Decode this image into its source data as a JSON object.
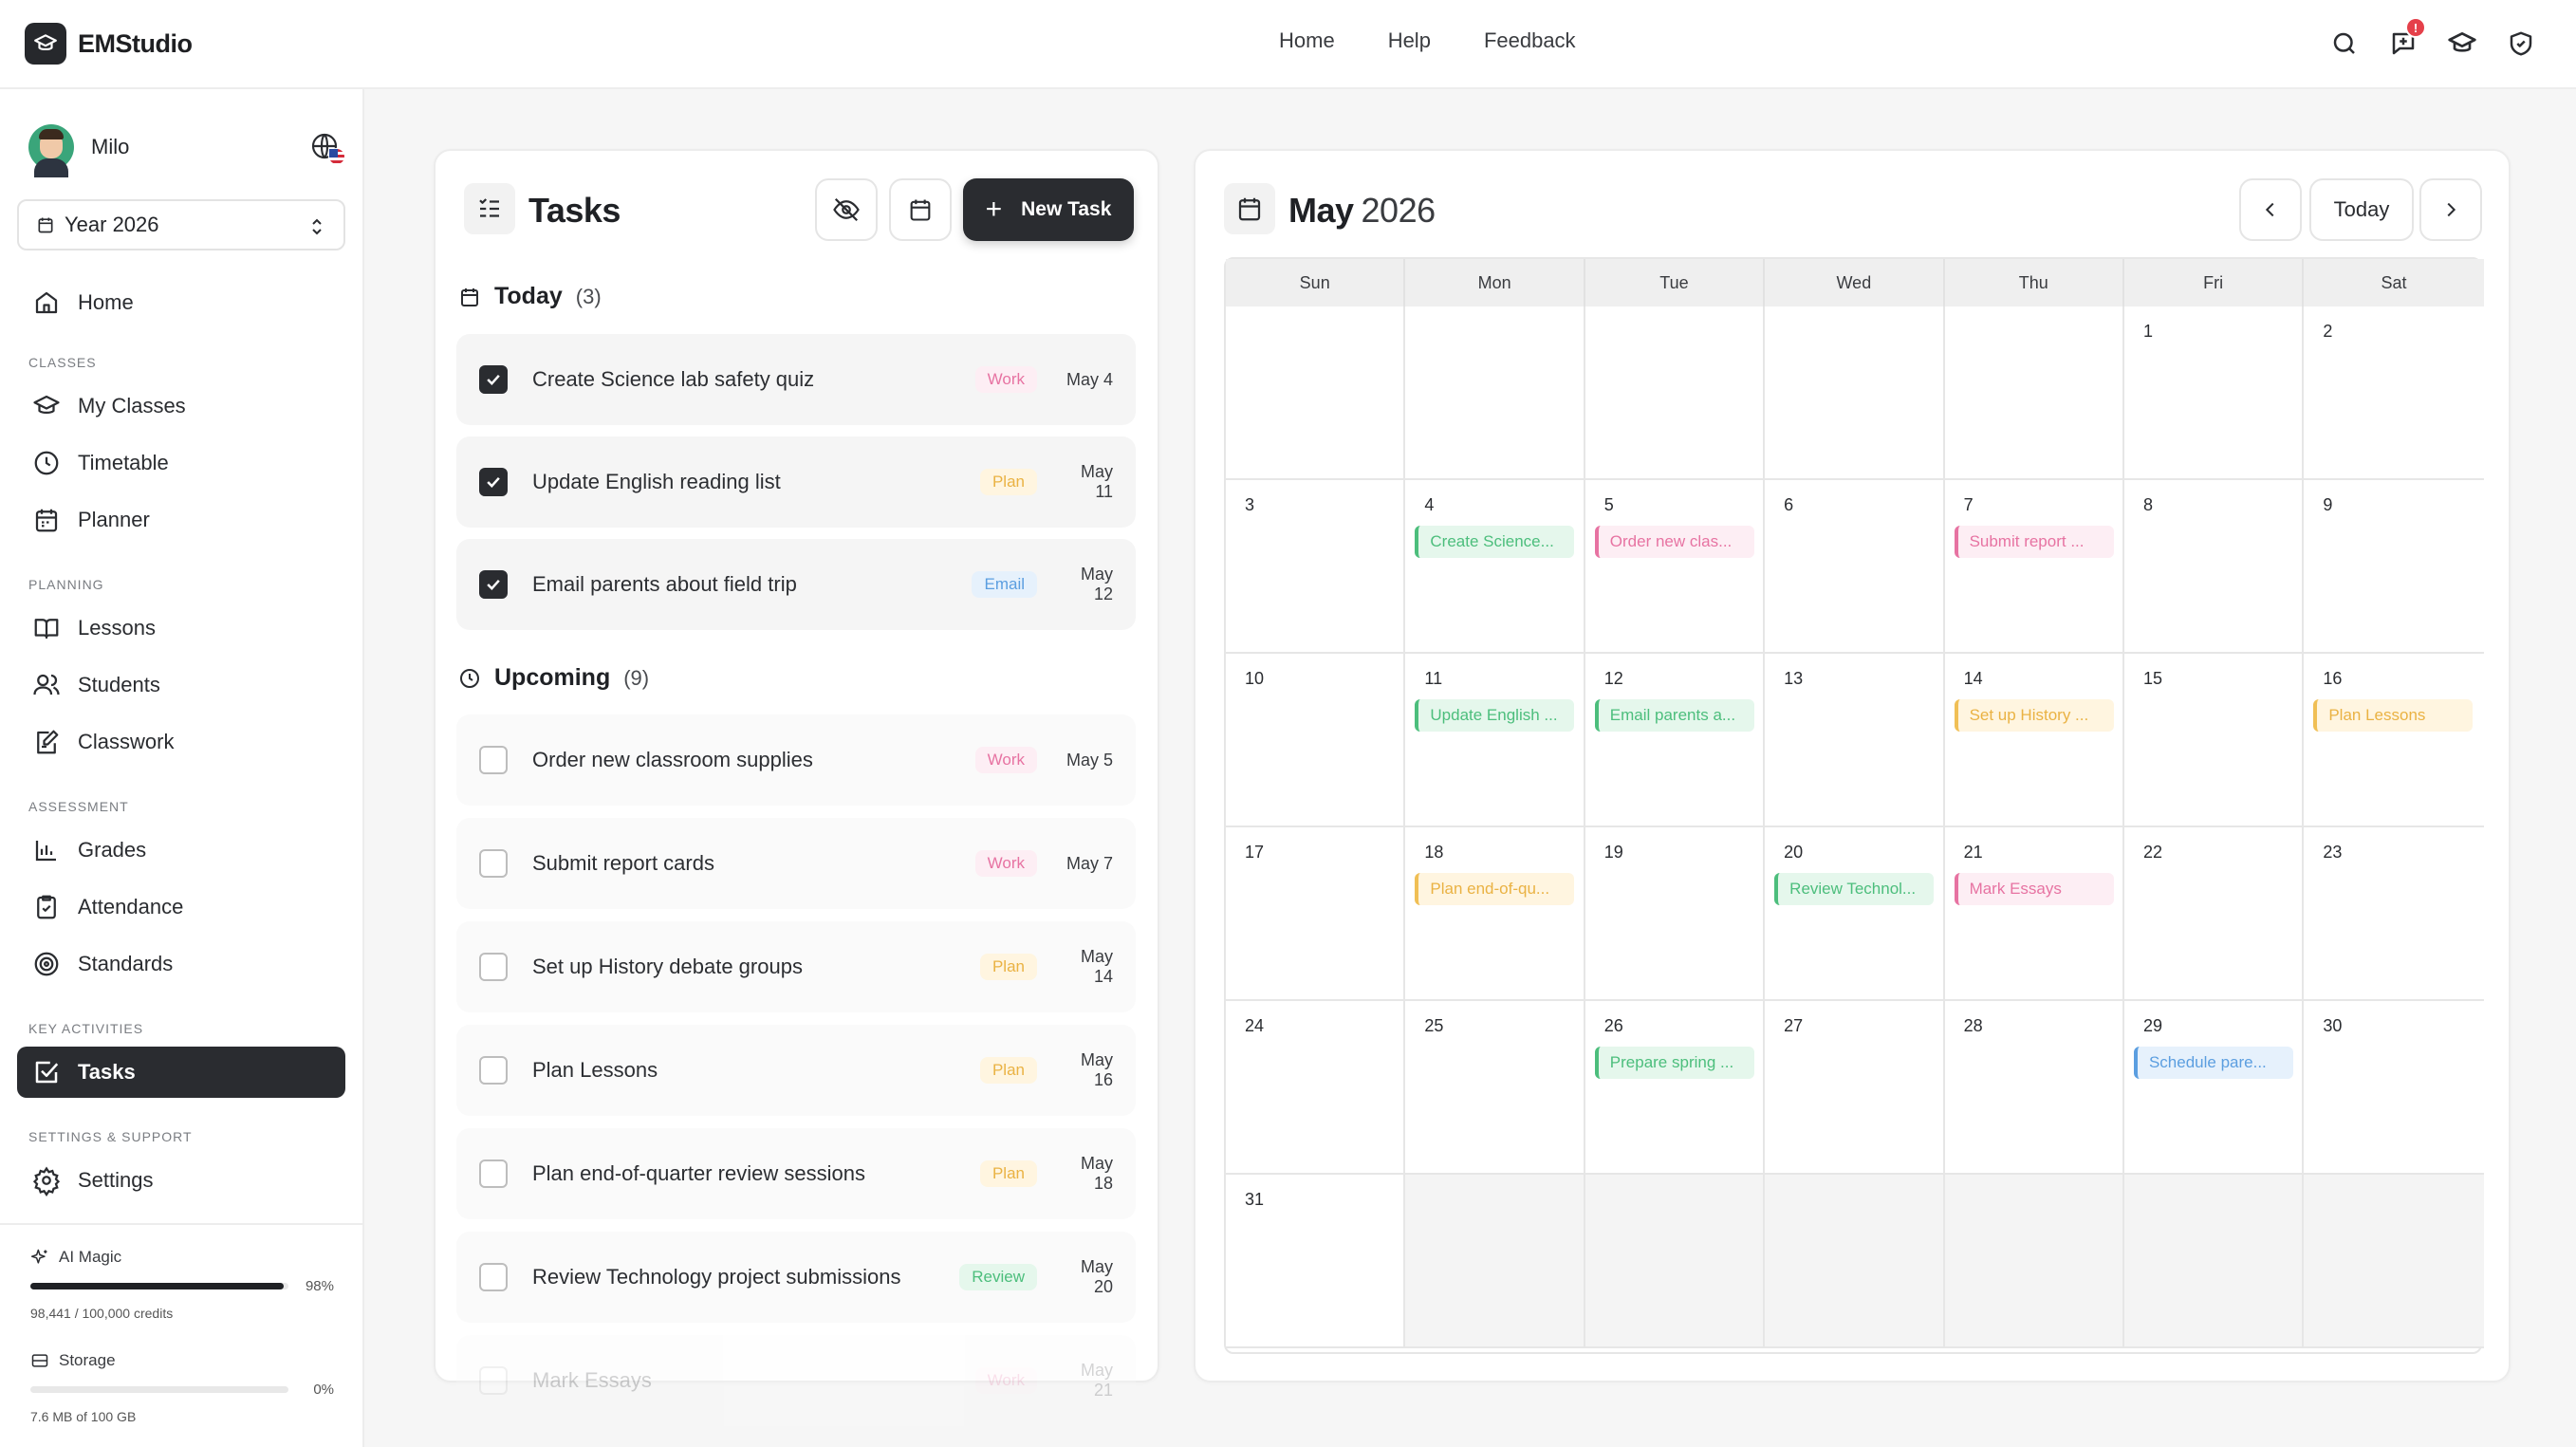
{
  "app": {
    "name": "EMStudio"
  },
  "topnav": {
    "home": "Home",
    "help": "Help",
    "feedback": "Feedback"
  },
  "header_icons": [
    "search-icon",
    "chat-plus-icon",
    "graduation-cap-icon",
    "shield-icon"
  ],
  "notifications": {
    "count": "!"
  },
  "user": {
    "name": "Milo"
  },
  "year_select": {
    "value": "Year 2026"
  },
  "sidebar": {
    "home": "Home",
    "sections": {
      "classes": "CLASSES",
      "planning": "PLANNING",
      "assessment": "ASSESSMENT",
      "key_activities": "KEY ACTIVITIES",
      "settings_support": "SETTINGS & SUPPORT"
    },
    "items": {
      "my_classes": "My Classes",
      "timetable": "Timetable",
      "planner": "Planner",
      "lessons": "Lessons",
      "students": "Students",
      "classwork": "Classwork",
      "grades": "Grades",
      "attendance": "Attendance",
      "standards": "Standards",
      "tasks": "Tasks",
      "settings": "Settings"
    },
    "active": "Tasks"
  },
  "usage": {
    "ai": {
      "label": "AI Magic",
      "percent": "98%",
      "fraction": 0.98,
      "detail": "98,441 / 100,000 credits"
    },
    "storage": {
      "label": "Storage",
      "percent": "0%",
      "fraction": 0.0,
      "detail": "7.6 MB of 100 GB"
    }
  },
  "tasks_panel": {
    "title": "Tasks",
    "new_task": "New Task",
    "today": {
      "label": "Today",
      "count": "(3)"
    },
    "upcoming": {
      "label": "Upcoming",
      "count": "(9)"
    },
    "today_tasks": [
      {
        "title": "Create Science lab safety quiz",
        "tag": "Work",
        "date": "May 4",
        "done": true
      },
      {
        "title": "Update English reading list",
        "tag": "Plan",
        "date": "May 11",
        "done": true
      },
      {
        "title": "Email parents about field trip",
        "tag": "Email",
        "date": "May 12",
        "done": true
      }
    ],
    "upcoming_tasks": [
      {
        "title": "Order new classroom supplies",
        "tag": "Work",
        "date": "May 5",
        "done": false
      },
      {
        "title": "Submit report cards",
        "tag": "Work",
        "date": "May 7",
        "done": false
      },
      {
        "title": "Set up History debate groups",
        "tag": "Plan",
        "date": "May 14",
        "done": false
      },
      {
        "title": "Plan Lessons",
        "tag": "Plan",
        "date": "May 16",
        "done": false
      },
      {
        "title": "Plan end-of-quarter review sessions",
        "tag": "Plan",
        "date": "May 18",
        "done": false
      },
      {
        "title": "Review Technology project submissions",
        "tag": "Review",
        "date": "May 20",
        "done": false
      },
      {
        "title": "Mark Essays",
        "tag": "Work",
        "date": "May 21",
        "done": false
      }
    ]
  },
  "calendar": {
    "month": "May",
    "year": "2026",
    "today_label": "Today",
    "weekdays": [
      "Sun",
      "Mon",
      "Tue",
      "Wed",
      "Thu",
      "Fri",
      "Sat"
    ],
    "weeks": [
      [
        "",
        "",
        "",
        "",
        "",
        "1",
        "2"
      ],
      [
        "3",
        "4",
        "5",
        "6",
        "7",
        "8",
        "9"
      ],
      [
        "10",
        "11",
        "12",
        "13",
        "14",
        "15",
        "16"
      ],
      [
        "17",
        "18",
        "19",
        "20",
        "21",
        "22",
        "23"
      ],
      [
        "24",
        "25",
        "26",
        "27",
        "28",
        "29",
        "30"
      ],
      [
        "31",
        "",
        "",
        "",
        "",
        "",
        ""
      ]
    ],
    "events": [
      {
        "day": "4",
        "text": "Create Science...",
        "type": "review"
      },
      {
        "day": "5",
        "text": "Order new clas...",
        "type": "work"
      },
      {
        "day": "7",
        "text": "Submit report ...",
        "type": "work"
      },
      {
        "day": "11",
        "text": "Update English ...",
        "type": "review"
      },
      {
        "day": "12",
        "text": "Email parents a...",
        "type": "review"
      },
      {
        "day": "14",
        "text": "Set up History ...",
        "type": "plan"
      },
      {
        "day": "16",
        "text": "Plan Lessons",
        "type": "plan"
      },
      {
        "day": "18",
        "text": "Plan end-of-qu...",
        "type": "plan"
      },
      {
        "day": "20",
        "text": "Review Technol...",
        "type": "review"
      },
      {
        "day": "21",
        "text": "Mark Essays",
        "type": "work"
      },
      {
        "day": "26",
        "text": "Prepare spring ...",
        "type": "review"
      },
      {
        "day": "29",
        "text": "Schedule pare...",
        "type": "email"
      }
    ]
  }
}
